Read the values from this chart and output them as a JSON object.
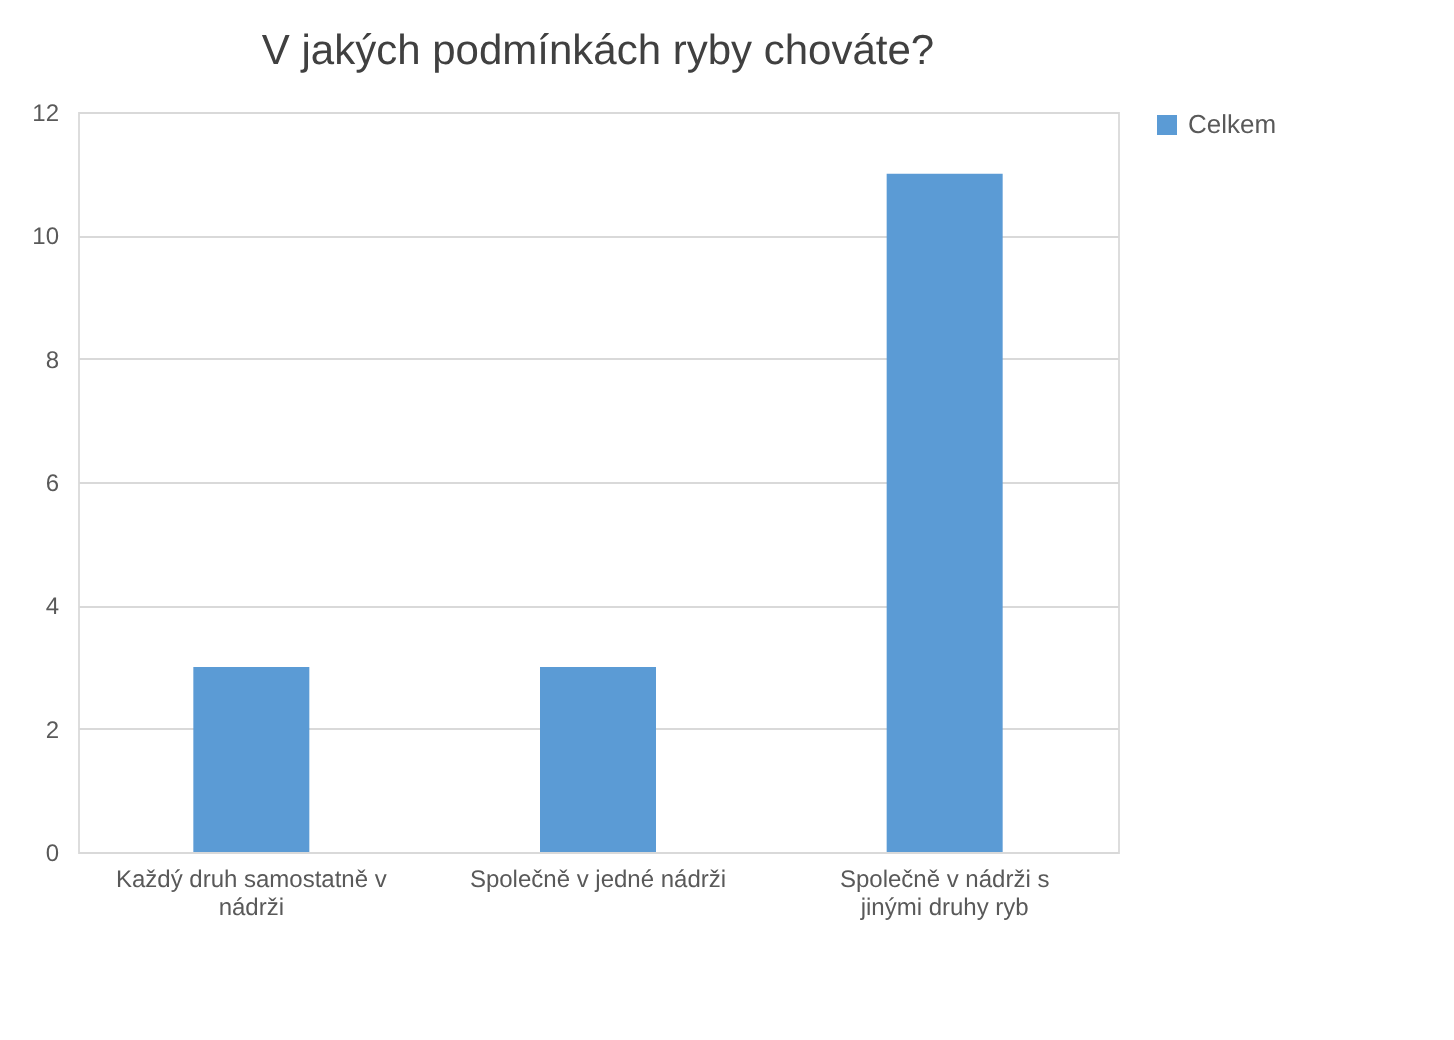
{
  "chart_data": {
    "type": "bar",
    "title": "V jakých podmínkách ryby chováte?",
    "categories": [
      "Každý druh samostatně v nádrži",
      "Společně v jedné nádrži",
      "Společně v nádrži s jinými druhy ryb"
    ],
    "series": [
      {
        "name": "Celkem",
        "color": "#5b9bd5",
        "values": [
          3,
          3,
          11
        ]
      }
    ],
    "ylim": [
      0,
      12
    ],
    "yticks": [
      0,
      2,
      4,
      6,
      8,
      10,
      12
    ],
    "grid": "y",
    "legend": "right"
  }
}
